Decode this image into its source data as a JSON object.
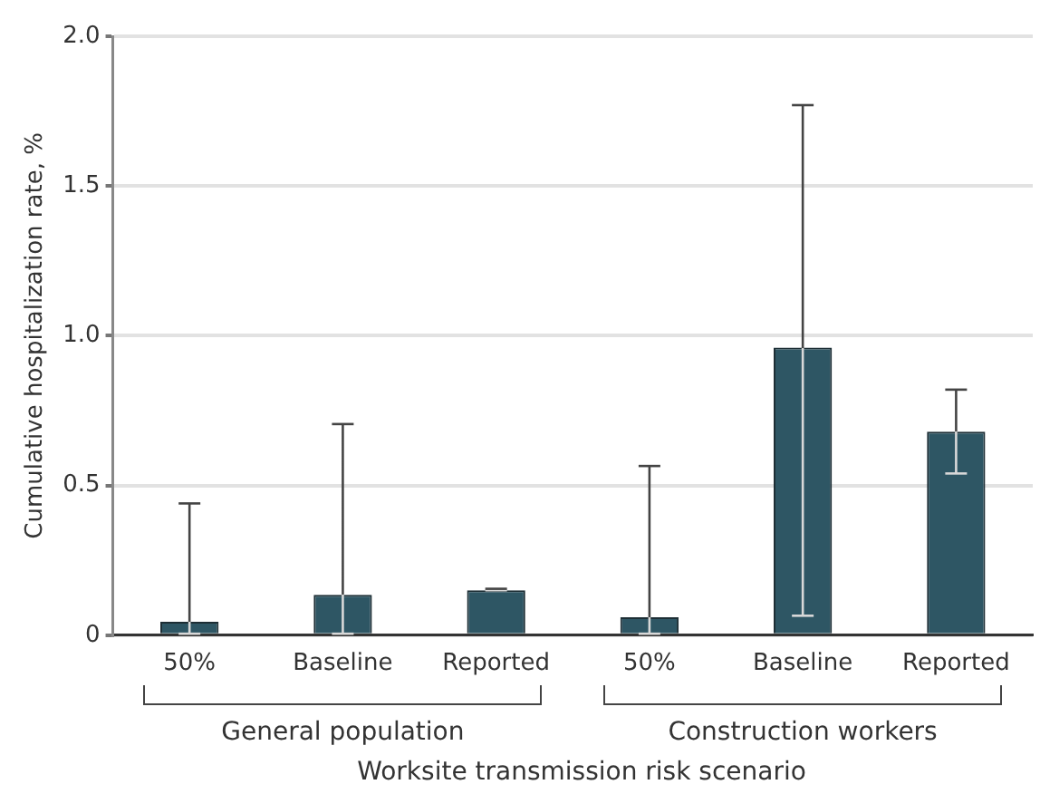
{
  "chart_data": {
    "type": "bar",
    "xlabel": "Worksite transmission risk scenario",
    "ylabel": "Cumulative hospitalization rate, %",
    "categories": [
      "50%",
      "Baseline",
      "Reported",
      "50%",
      "Baseline",
      "Reported"
    ],
    "values": [
      0.045,
      0.135,
      0.15,
      0.06,
      0.96,
      0.68
    ],
    "errors": [
      [
        0.005,
        0.44
      ],
      [
        0.005,
        0.705
      ],
      [
        0.15,
        0.155
      ],
      [
        0.005,
        0.565
      ],
      [
        0.065,
        1.77
      ],
      [
        0.54,
        0.82
      ]
    ],
    "color": "#2e5664",
    "ylim": [
      0,
      2
    ],
    "yticks": [
      0,
      {
        "value": 0.5,
        "label": "0.5"
      },
      {
        "value": 1,
        "label": "1.0"
      },
      {
        "value": 1.5,
        "label": "1.5"
      },
      {
        "value": 2,
        "label": "2.0"
      }
    ],
    "grid": "y",
    "annotations": [
      "General population",
      "Construction workers"
    ]
  }
}
